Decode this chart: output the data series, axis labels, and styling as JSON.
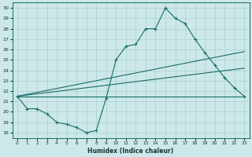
{
  "xlabel": "Humidex (Indice chaleur)",
  "bg_color": "#cce8e8",
  "line_color": "#1a6b6b",
  "grid_color": "#aad0d0",
  "xlim": [
    -0.5,
    23.5
  ],
  "ylim": [
    17.5,
    30.5
  ],
  "yticks": [
    18,
    19,
    20,
    21,
    22,
    23,
    24,
    25,
    26,
    27,
    28,
    29,
    30
  ],
  "xticks": [
    0,
    1,
    2,
    3,
    4,
    5,
    6,
    7,
    8,
    9,
    10,
    11,
    12,
    13,
    14,
    15,
    16,
    17,
    18,
    19,
    20,
    21,
    22,
    23
  ],
  "lines": [
    {
      "x": [
        0,
        1,
        2,
        3,
        4,
        5,
        6,
        7,
        8,
        9,
        10,
        11,
        12,
        13,
        14,
        15,
        16,
        17,
        18,
        19,
        20,
        21,
        22,
        23
      ],
      "y": [
        21.5,
        20.3,
        20.3,
        19.8,
        19.0,
        18.8,
        18.5,
        18.0,
        18.2,
        21.3,
        25.0,
        26.3,
        26.5,
        28.0,
        28.0,
        30.0,
        29.0,
        28.5,
        27.0,
        25.7,
        24.5,
        23.3,
        22.3,
        21.5
      ],
      "markers": true
    },
    {
      "x": [
        0,
        23
      ],
      "y": [
        21.5,
        25.8
      ],
      "markers": false
    },
    {
      "x": [
        0,
        23
      ],
      "y": [
        21.5,
        24.2
      ],
      "markers": false
    },
    {
      "x": [
        0,
        23
      ],
      "y": [
        21.5,
        21.5
      ],
      "markers": false
    }
  ]
}
